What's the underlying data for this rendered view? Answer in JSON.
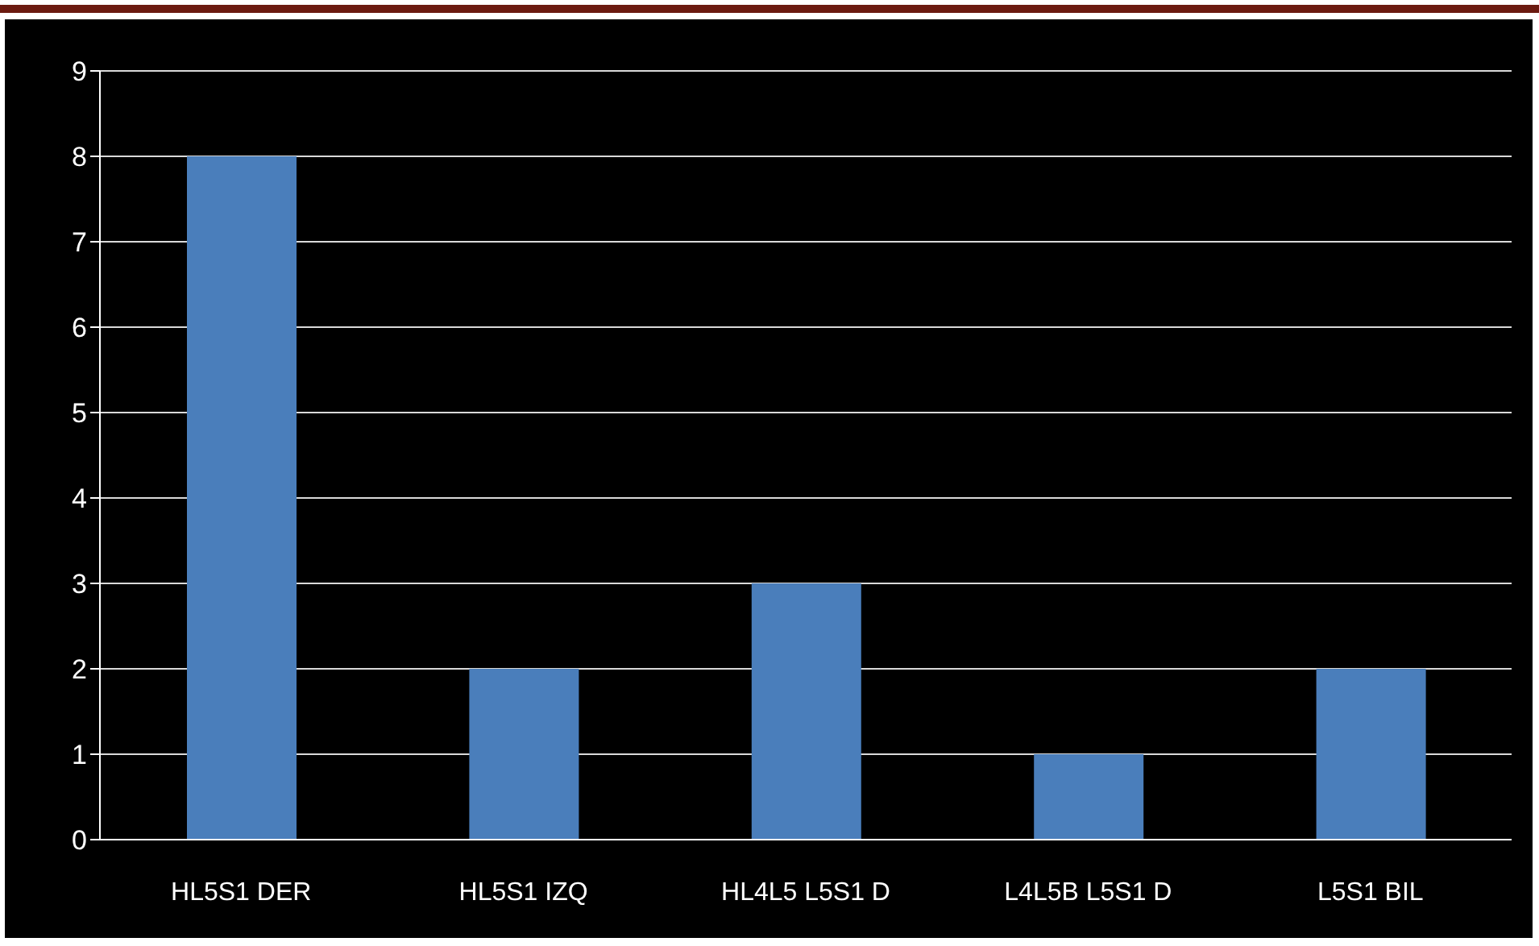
{
  "chart_data": {
    "type": "bar",
    "categories": [
      "HL5S1 DER",
      "HL5S1 IZQ",
      "HL4L5 L5S1 D",
      "L4L5B L5S1 D",
      "L5S1 BIL"
    ],
    "values": [
      8,
      2,
      3,
      1,
      2
    ],
    "color": "#4a7ebb",
    "ylim": [
      0,
      9
    ],
    "yticks": [
      0,
      1,
      2,
      3,
      4,
      5,
      6,
      7,
      8,
      9
    ],
    "grid": "y"
  }
}
